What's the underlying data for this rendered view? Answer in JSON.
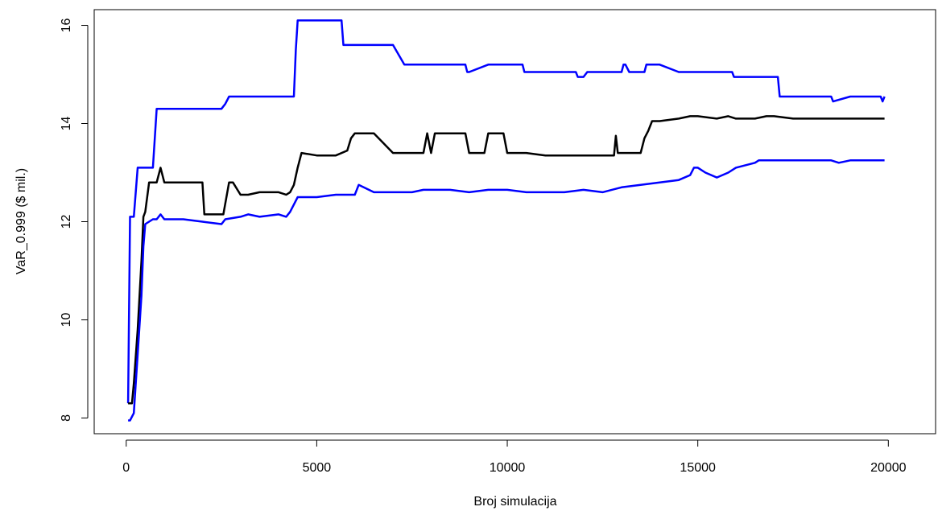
{
  "chart_data": {
    "type": "line",
    "title": "",
    "xlabel": "Broj simulacija",
    "ylabel": "VaR_0.999 ($ mil.)",
    "xlim": [
      -840,
      21240
    ],
    "ylim": [
      7.68,
      16.32
    ],
    "xticks": [
      {
        "value": 0,
        "label": "0"
      },
      {
        "value": 5000,
        "label": "5000"
      },
      {
        "value": 10000,
        "label": "10000"
      },
      {
        "value": 15000,
        "label": "15000"
      },
      {
        "value": 20000,
        "label": "20000"
      }
    ],
    "yticks": [
      {
        "value": 8,
        "label": "8"
      },
      {
        "value": 10,
        "label": "10"
      },
      {
        "value": 12,
        "label": "12"
      },
      {
        "value": 14,
        "label": "14"
      },
      {
        "value": 16,
        "label": "16"
      }
    ],
    "grid": false,
    "legend": "none",
    "series": [
      {
        "color": "#0000ff",
        "role": "upper",
        "x": [
          50,
          100,
          150,
          200,
          300,
          400,
          500,
          700,
          800,
          850,
          900,
          1500,
          2000,
          2500,
          2600,
          2700,
          3000,
          3500,
          4000,
          4400,
          4450,
          4500,
          5000,
          5500,
          5650,
          5700,
          6000,
          6500,
          7000,
          7300,
          7350,
          8000,
          8500,
          8900,
          8950,
          9000,
          9500,
          10000,
          10400,
          10450,
          11000,
          11800,
          11850,
          12000,
          12100,
          12150,
          13000,
          13050,
          13100,
          13200,
          13600,
          13650,
          14000,
          14500,
          14550,
          15000,
          15500,
          15900,
          15950,
          16500,
          17000,
          17100,
          17150,
          17500,
          18000,
          18500,
          18550,
          19000,
          19500,
          19800,
          19850,
          19900
        ],
        "y": [
          8.3,
          12.1,
          12.1,
          12.1,
          13.1,
          13.1,
          13.1,
          13.1,
          14.3,
          14.3,
          14.3,
          14.3,
          14.3,
          14.3,
          14.4,
          14.55,
          14.55,
          14.55,
          14.55,
          14.55,
          15.5,
          16.1,
          16.1,
          16.1,
          16.1,
          15.6,
          15.6,
          15.6,
          15.6,
          15.2,
          15.2,
          15.2,
          15.2,
          15.2,
          15.05,
          15.05,
          15.2,
          15.2,
          15.2,
          15.05,
          15.05,
          15.05,
          14.95,
          14.95,
          15.05,
          15.05,
          15.05,
          15.2,
          15.2,
          15.05,
          15.05,
          15.2,
          15.2,
          15.05,
          15.05,
          15.05,
          15.05,
          15.05,
          14.95,
          14.95,
          14.95,
          14.95,
          14.55,
          14.55,
          14.55,
          14.55,
          14.45,
          14.55,
          14.55,
          14.55,
          14.45,
          14.55
        ]
      },
      {
        "color": "#000000",
        "role": "center",
        "x": [
          50,
          150,
          200,
          300,
          400,
          450,
          500,
          600,
          700,
          800,
          900,
          1000,
          1500,
          2000,
          2050,
          2500,
          2550,
          2700,
          2800,
          3000,
          3200,
          3500,
          4000,
          4200,
          4300,
          4400,
          4500,
          4600,
          5000,
          5500,
          5800,
          5900,
          6000,
          6500,
          7000,
          7800,
          7900,
          8000,
          8100,
          8200,
          8900,
          9000,
          9400,
          9500,
          9900,
          10000,
          10500,
          11000,
          12000,
          12800,
          12850,
          12900,
          13000,
          13500,
          13600,
          13700,
          13800,
          14000,
          14500,
          14800,
          15000,
          15500,
          15800,
          16000,
          16500,
          16800,
          17000,
          17500,
          18000,
          18500,
          19000,
          19500,
          19900
        ],
        "y": [
          8.3,
          8.3,
          8.7,
          9.8,
          11.2,
          12.1,
          12.2,
          12.8,
          12.8,
          12.8,
          13.1,
          12.8,
          12.8,
          12.8,
          12.15,
          12.15,
          12.15,
          12.8,
          12.8,
          12.55,
          12.55,
          12.6,
          12.6,
          12.55,
          12.6,
          12.75,
          13.1,
          13.4,
          13.35,
          13.35,
          13.45,
          13.7,
          13.8,
          13.8,
          13.4,
          13.4,
          13.8,
          13.4,
          13.8,
          13.8,
          13.8,
          13.4,
          13.4,
          13.8,
          13.8,
          13.4,
          13.4,
          13.35,
          13.35,
          13.35,
          13.75,
          13.4,
          13.4,
          13.4,
          13.7,
          13.85,
          14.05,
          14.05,
          14.1,
          14.15,
          14.15,
          14.1,
          14.15,
          14.1,
          14.1,
          14.15,
          14.15,
          14.1,
          14.1,
          14.1,
          14.1,
          14.1,
          14.1
        ]
      },
      {
        "color": "#0000ff",
        "role": "lower",
        "x": [
          50,
          100,
          200,
          300,
          400,
          450,
          500,
          700,
          800,
          900,
          1000,
          1500,
          2000,
          2500,
          2600,
          3000,
          3200,
          3500,
          4000,
          4200,
          4300,
          4400,
          4500,
          5000,
          5500,
          6000,
          6100,
          6500,
          7000,
          7500,
          7800,
          8000,
          8500,
          9000,
          9500,
          10000,
          10500,
          11000,
          11500,
          12000,
          12500,
          13000,
          13500,
          14000,
          14500,
          14800,
          14900,
          15000,
          15200,
          15500,
          15800,
          16000,
          16500,
          16600,
          17000,
          17500,
          18000,
          18500,
          18700,
          19000,
          19500,
          19900
        ],
        "y": [
          7.95,
          7.95,
          8.1,
          9.3,
          10.5,
          11.5,
          11.95,
          12.05,
          12.05,
          12.15,
          12.05,
          12.05,
          12.0,
          11.95,
          12.05,
          12.1,
          12.15,
          12.1,
          12.15,
          12.1,
          12.2,
          12.35,
          12.5,
          12.5,
          12.55,
          12.55,
          12.75,
          12.6,
          12.6,
          12.6,
          12.65,
          12.65,
          12.65,
          12.6,
          12.65,
          12.65,
          12.6,
          12.6,
          12.6,
          12.65,
          12.6,
          12.7,
          12.75,
          12.8,
          12.85,
          12.95,
          13.1,
          13.1,
          13.0,
          12.9,
          13.0,
          13.1,
          13.2,
          13.25,
          13.25,
          13.25,
          13.25,
          13.25,
          13.2,
          13.25,
          13.25,
          13.25
        ]
      }
    ]
  }
}
